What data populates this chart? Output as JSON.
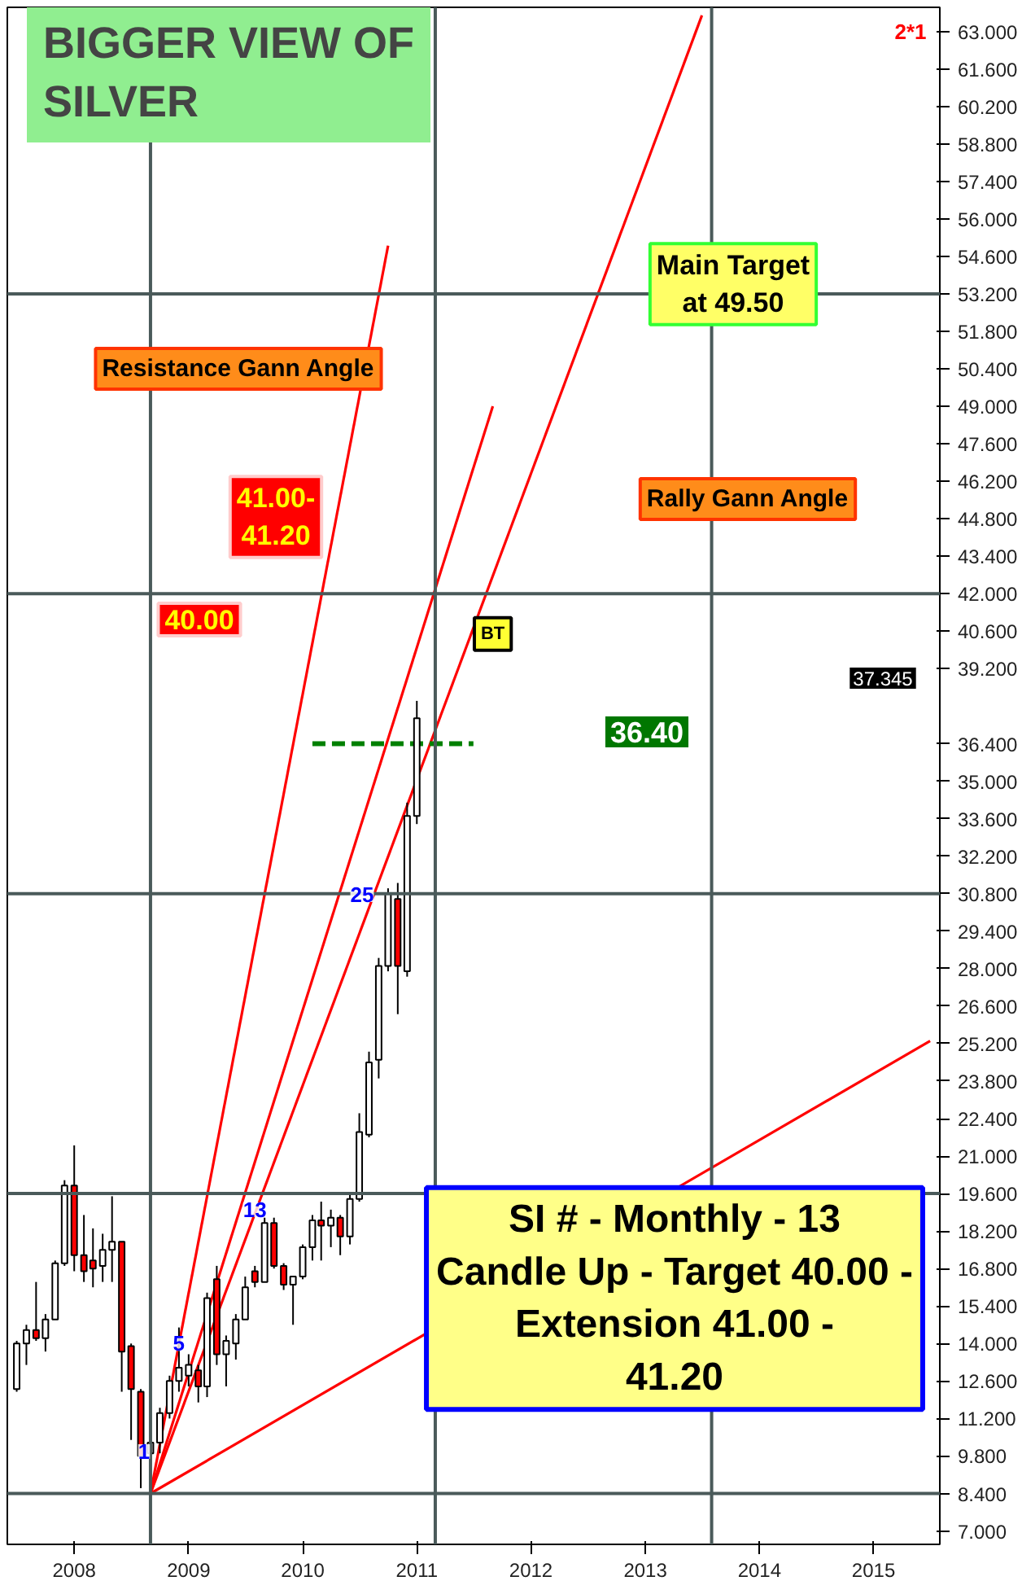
{
  "chart_data": {
    "type": "candlestick",
    "title": "BIGGER VIEW OF\nSILVER",
    "x": [
      "2007-07",
      "2007-08",
      "2007-09",
      "2007-10",
      "2007-11",
      "2007-12",
      "2008-01",
      "2008-02",
      "2008-03",
      "2008-04",
      "2008-05",
      "2008-06",
      "2008-07",
      "2008-08",
      "2008-09",
      "2008-10",
      "2008-11",
      "2008-12",
      "2009-01",
      "2009-02",
      "2009-03",
      "2009-04",
      "2009-05",
      "2009-06",
      "2009-07",
      "2009-08",
      "2009-09",
      "2009-10",
      "2009-11",
      "2009-12",
      "2010-01",
      "2010-02",
      "2010-03",
      "2010-04",
      "2010-05",
      "2010-06",
      "2010-07",
      "2010-08",
      "2010-09",
      "2010-10",
      "2010-11",
      "2010-12",
      "2011-01"
    ],
    "ohlc": [
      [
        12.3,
        14.1,
        12.2,
        14.0
      ],
      [
        14.0,
        14.7,
        13.2,
        14.5
      ],
      [
        14.5,
        16.3,
        14.1,
        14.2
      ],
      [
        14.2,
        15.1,
        13.7,
        14.9
      ],
      [
        14.9,
        17.1,
        14.9,
        17.0
      ],
      [
        17.0,
        20.1,
        16.9,
        19.9
      ],
      [
        19.9,
        21.4,
        16.7,
        17.3
      ],
      [
        17.3,
        18.8,
        16.3,
        16.7
      ],
      [
        17.1,
        18.3,
        16.1,
        16.8
      ],
      [
        16.9,
        18.1,
        16.3,
        17.5
      ],
      [
        17.5,
        19.5,
        16.3,
        17.8
      ],
      [
        17.8,
        17.8,
        12.2,
        13.7
      ],
      [
        13.9,
        14.0,
        10.4,
        12.3
      ],
      [
        12.2,
        12.3,
        8.6,
        9.8
      ],
      [
        9.9,
        10.8,
        8.6,
        10.3
      ],
      [
        10.3,
        11.6,
        9.9,
        11.4
      ],
      [
        11.4,
        12.8,
        11.2,
        12.6
      ],
      [
        12.6,
        14.6,
        12.2,
        13.1
      ],
      [
        12.8,
        13.6,
        12.4,
        13.2
      ],
      [
        13.0,
        13.2,
        11.8,
        12.4
      ],
      [
        12.4,
        15.9,
        12.0,
        15.7
      ],
      [
        16.4,
        16.9,
        13.2,
        13.6
      ],
      [
        13.6,
        14.3,
        12.4,
        14.1
      ],
      [
        14.0,
        15.1,
        13.4,
        14.9
      ],
      [
        14.9,
        16.5,
        14.9,
        16.1
      ],
      [
        16.7,
        16.9,
        16.1,
        16.3
      ],
      [
        16.3,
        18.7,
        16.3,
        18.5
      ],
      [
        18.5,
        18.7,
        16.8,
        16.9
      ],
      [
        16.9,
        17.0,
        16.0,
        16.2
      ],
      [
        16.2,
        16.5,
        14.7,
        16.5
      ],
      [
        16.5,
        17.7,
        16.4,
        17.6
      ],
      [
        17.6,
        18.8,
        17.1,
        18.6
      ],
      [
        18.6,
        19.3,
        17.1,
        18.4
      ],
      [
        18.4,
        19.0,
        17.6,
        18.7
      ],
      [
        18.7,
        18.8,
        17.3,
        18.0
      ],
      [
        18.0,
        19.6,
        17.7,
        19.4
      ],
      [
        19.4,
        22.6,
        19.3,
        21.9
      ],
      [
        21.8,
        24.9,
        21.7,
        24.5
      ],
      [
        24.6,
        28.4,
        23.9,
        28.1
      ],
      [
        28.1,
        31.0,
        27.9,
        30.8
      ],
      [
        30.6,
        31.2,
        26.3,
        28.1
      ],
      [
        27.9,
        34.2,
        27.7,
        33.7
      ],
      [
        33.7,
        38.0,
        33.4,
        37.35
      ]
    ],
    "colors": [
      "#ffffff",
      "#ffffff",
      "#ff0000",
      "#ffffff",
      "#ffffff",
      "#ffffff",
      "#ff0000",
      "#ff0000",
      "#ff0000",
      "#ffffff",
      "#ffffff",
      "#ff0000",
      "#ff0000",
      "#ff0000",
      "#ffffff",
      "#ffffff",
      "#ffffff",
      "#ffffff",
      "#ffffff",
      "#ff0000",
      "#ffffff",
      "#ff0000",
      "#ffffff",
      "#ffffff",
      "#ffffff",
      "#ff0000",
      "#ffffff",
      "#ff0000",
      "#ff0000",
      "#ffffff",
      "#ffffff",
      "#ffffff",
      "#ff0000",
      "#ffffff",
      "#ff0000",
      "#ffffff",
      "#ffffff",
      "#ffffff",
      "#ffffff",
      "#ffffff",
      "#ff0000",
      "#ffffff",
      "#ffffff"
    ],
    "series": [
      {
        "type": "line",
        "color": "#ff0000",
        "x": [
          "2008-09",
          "2011-09"
        ],
        "values": [
          8.4,
          49.0
        ]
      },
      {
        "type": "line",
        "color": "#ff0000",
        "x": [
          "2008-09",
          "2013-07"
        ],
        "values": [
          8.4,
          63.6
        ]
      },
      {
        "type": "line",
        "color": "#ff0000",
        "x": [
          "2008-09",
          "2010-10"
        ],
        "values": [
          8.4,
          55.0
        ]
      },
      {
        "type": "line",
        "color": "#ff0000",
        "x": [
          "2008-09",
          "2015-07"
        ],
        "values": [
          8.4,
          25.3
        ]
      },
      {
        "type": "line",
        "color": "#008000",
        "line_style": "dashed",
        "x": [
          "2010-02",
          "2011-07"
        ],
        "values": [
          36.4,
          36.4
        ]
      }
    ],
    "ref_lines": [
      {
        "axis": "y",
        "value": 53.2,
        "color": "#4a5a5a"
      },
      {
        "axis": "y",
        "value": 42.0,
        "color": "#4a5a5a"
      },
      {
        "axis": "y",
        "value": 30.8,
        "color": "#4a5a5a"
      },
      {
        "axis": "y",
        "value": 19.6,
        "color": "#4a5a5a"
      },
      {
        "axis": "y",
        "value": 8.4,
        "color": "#4a5a5a"
      },
      {
        "axis": "x",
        "value": "2008-09",
        "color": "#4a5a5a"
      },
      {
        "axis": "x",
        "value": "2011-03",
        "color": "#4a5a5a"
      },
      {
        "axis": "x",
        "value": "2013-08",
        "color": "#4a5a5a"
      }
    ],
    "annotations": [
      "Resistance Gann Angle",
      "Rally Gann Angle",
      "Main Target\nat 49.50",
      "41.00-\n41.20",
      "40.00",
      "36.40",
      "SI # - Monthly - 13\nCandle Up - Target 40.00 -\nExtension 41.00 -\n41.20",
      {
        "text": "BT",
        "x": "2011-09",
        "y": 40.5
      },
      "1",
      {
        "text": "5",
        "x": "2009-01",
        "y": 14.0
      },
      {
        "text": "13",
        "x": "2009-09",
        "y": 19.0
      },
      "25",
      "2*1",
      "37.345"
    ],
    "xlim": [
      "2007-06",
      "2015-08"
    ],
    "ylim": [
      6.5,
      63.9
    ],
    "xticks": [
      {
        "value": "2008-01",
        "label": "2008"
      },
      {
        "value": "2009-01",
        "label": "2009"
      },
      {
        "value": "2010-01",
        "label": "2010"
      },
      {
        "value": "2011-01",
        "label": "2011"
      },
      {
        "value": "2012-01",
        "label": "2012"
      },
      {
        "value": "2013-01",
        "label": "2013"
      },
      {
        "value": "2014-01",
        "label": "2014"
      },
      {
        "value": "2015-01",
        "label": "2015"
      }
    ],
    "yticks": [
      {
        "value": 7.0,
        "label": "7.000"
      },
      {
        "value": 8.4,
        "label": "8.400"
      },
      {
        "value": 9.8,
        "label": "9.800"
      },
      {
        "value": 11.2,
        "label": "11.200"
      },
      {
        "value": 12.6,
        "label": "12.600"
      },
      {
        "value": 14.0,
        "label": "14.000"
      },
      {
        "value": 15.4,
        "label": "15.400"
      },
      {
        "value": 16.8,
        "label": "16.800"
      },
      {
        "value": 18.2,
        "label": "18.200"
      },
      {
        "value": 19.6,
        "label": "19.600"
      },
      {
        "value": 21.0,
        "label": "21.000"
      },
      {
        "value": 22.4,
        "label": "22.400"
      },
      {
        "value": 23.8,
        "label": "23.800"
      },
      {
        "value": 25.2,
        "label": "25.200"
      },
      {
        "value": 26.6,
        "label": "26.600"
      },
      {
        "value": 28.0,
        "label": "28.000"
      },
      {
        "value": 29.4,
        "label": "29.400"
      },
      {
        "value": 30.8,
        "label": "30.800"
      },
      {
        "value": 32.2,
        "label": "32.200"
      },
      {
        "value": 33.6,
        "label": "33.600"
      },
      {
        "value": 35.0,
        "label": "35.000"
      },
      {
        "value": 36.4,
        "label": "36.400"
      },
      {
        "value": 39.2,
        "label": "39.200"
      },
      {
        "value": 40.6,
        "label": "40.600"
      },
      {
        "value": 42.0,
        "label": "42.000"
      },
      {
        "value": 43.4,
        "label": "43.400"
      },
      {
        "value": 44.8,
        "label": "44.800"
      },
      {
        "value": 46.2,
        "label": "46.200"
      },
      {
        "value": 47.6,
        "label": "47.600"
      },
      {
        "value": 49.0,
        "label": "49.000"
      },
      {
        "value": 50.4,
        "label": "50.400"
      },
      {
        "value": 51.8,
        "label": "51.800"
      },
      {
        "value": 53.2,
        "label": "53.200"
      },
      {
        "value": 54.6,
        "label": "54.600"
      },
      {
        "value": 56.0,
        "label": "56.000"
      },
      {
        "value": 57.4,
        "label": "57.400"
      },
      {
        "value": 58.8,
        "label": "58.800"
      },
      {
        "value": 60.2,
        "label": "60.200"
      },
      {
        "value": 61.6,
        "label": "61.600"
      },
      {
        "value": 63.0,
        "label": "63.000"
      }
    ],
    "grid": false,
    "marker": "none"
  }
}
